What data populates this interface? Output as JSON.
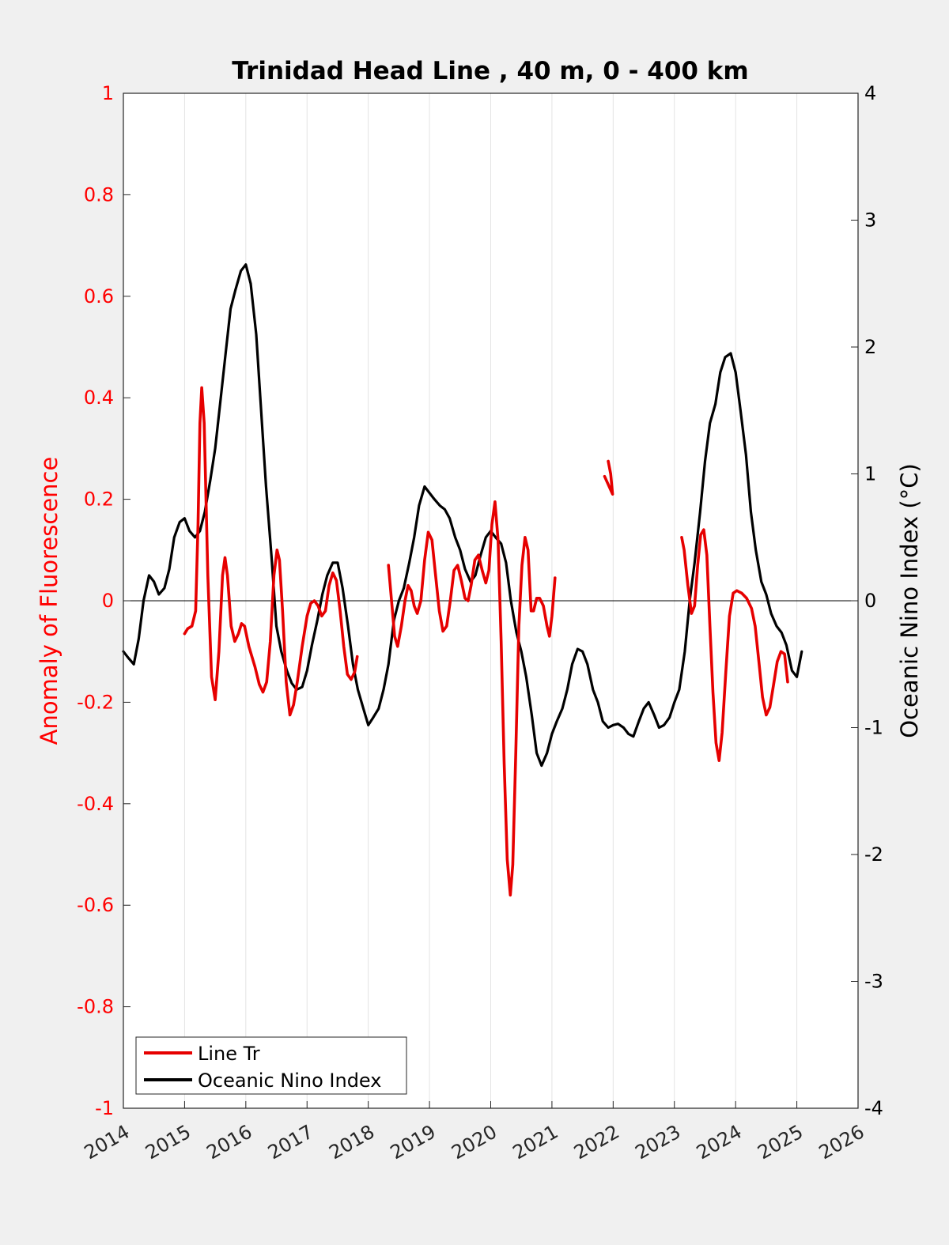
{
  "chart_data": {
    "type": "line",
    "title": "Trinidad Head Line , 40 m, 0 - 400 km",
    "xlabel": "",
    "ylabel_left": "Anomaly of Fluorescence",
    "ylabel_right": "Oceanic Nino Index (°C)",
    "xlim": [
      2014,
      2026
    ],
    "ylim_left": [
      -1,
      1
    ],
    "ylim_right": [
      -4,
      4
    ],
    "x_ticks": [
      "2014",
      "2015",
      "2016",
      "2017",
      "2018",
      "2019",
      "2020",
      "2021",
      "2022",
      "2023",
      "2024",
      "2025",
      "2026"
    ],
    "y_ticks_left": [
      "1",
      "0.8",
      "0.6",
      "0.4",
      "0.2",
      "0",
      "-0.2",
      "-0.4",
      "-0.6",
      "-0.8",
      "-1"
    ],
    "y_ticks_right": [
      "4",
      "3",
      "2",
      "1",
      "0",
      "-1",
      "-2",
      "-3",
      "-4"
    ],
    "grid": "vertical",
    "zero_line": true,
    "legend_position": "bottom-left",
    "colors": {
      "left_axis": "#ff0000",
      "line_tr": "#e60000",
      "oni": "#000000",
      "bg": "#f0f0f0"
    },
    "series": [
      {
        "name": "Line Tr",
        "axis": "left",
        "color": "#e60000",
        "segments": [
          [
            [
              2015.0,
              -0.065
            ],
            [
              2015.05,
              -0.055
            ],
            [
              2015.12,
              -0.05
            ],
            [
              2015.18,
              -0.02
            ],
            [
              2015.22,
              0.15
            ],
            [
              2015.25,
              0.35
            ],
            [
              2015.28,
              0.42
            ],
            [
              2015.32,
              0.35
            ],
            [
              2015.38,
              0.05
            ],
            [
              2015.44,
              -0.15
            ],
            [
              2015.5,
              -0.195
            ],
            [
              2015.56,
              -0.1
            ],
            [
              2015.62,
              0.05
            ],
            [
              2015.66,
              0.085
            ],
            [
              2015.7,
              0.05
            ],
            [
              2015.76,
              -0.05
            ],
            [
              2015.82,
              -0.08
            ],
            [
              2015.88,
              -0.065
            ],
            [
              2015.93,
              -0.045
            ],
            [
              2015.98,
              -0.05
            ],
            [
              2016.05,
              -0.09
            ],
            [
              2016.15,
              -0.13
            ],
            [
              2016.22,
              -0.165
            ],
            [
              2016.28,
              -0.18
            ],
            [
              2016.34,
              -0.16
            ],
            [
              2016.4,
              -0.08
            ],
            [
              2016.46,
              0.05
            ],
            [
              2016.51,
              0.1
            ],
            [
              2016.55,
              0.08
            ],
            [
              2016.6,
              -0.02
            ],
            [
              2016.66,
              -0.16
            ],
            [
              2016.72,
              -0.225
            ],
            [
              2016.78,
              -0.205
            ],
            [
              2016.84,
              -0.16
            ],
            [
              2016.92,
              -0.09
            ],
            [
              2017.0,
              -0.03
            ],
            [
              2017.06,
              -0.005
            ],
            [
              2017.12,
              0.0
            ],
            [
              2017.18,
              -0.01
            ],
            [
              2017.24,
              -0.03
            ],
            [
              2017.3,
              -0.02
            ],
            [
              2017.36,
              0.03
            ],
            [
              2017.42,
              0.055
            ],
            [
              2017.48,
              0.04
            ],
            [
              2017.54,
              -0.02
            ],
            [
              2017.6,
              -0.09
            ],
            [
              2017.66,
              -0.145
            ],
            [
              2017.72,
              -0.155
            ],
            [
              2017.78,
              -0.14
            ],
            [
              2017.82,
              -0.11
            ]
          ],
          [
            [
              2018.33,
              0.07
            ],
            [
              2018.38,
              0.0
            ],
            [
              2018.43,
              -0.07
            ],
            [
              2018.48,
              -0.09
            ],
            [
              2018.54,
              -0.05
            ],
            [
              2018.6,
              0.0
            ],
            [
              2018.65,
              0.03
            ],
            [
              2018.7,
              0.02
            ],
            [
              2018.75,
              -0.01
            ],
            [
              2018.8,
              -0.025
            ],
            [
              2018.86,
              0.0
            ],
            [
              2018.92,
              0.08
            ],
            [
              2018.98,
              0.135
            ],
            [
              2019.04,
              0.12
            ],
            [
              2019.1,
              0.05
            ],
            [
              2019.16,
              -0.02
            ],
            [
              2019.22,
              -0.06
            ],
            [
              2019.28,
              -0.05
            ],
            [
              2019.34,
              0.0
            ],
            [
              2019.4,
              0.06
            ],
            [
              2019.46,
              0.07
            ],
            [
              2019.52,
              0.04
            ],
            [
              2019.58,
              0.005
            ],
            [
              2019.63,
              0.0
            ],
            [
              2019.68,
              0.03
            ],
            [
              2019.74,
              0.08
            ],
            [
              2019.8,
              0.09
            ],
            [
              2019.86,
              0.06
            ],
            [
              2019.92,
              0.035
            ],
            [
              2019.97,
              0.06
            ],
            [
              2020.02,
              0.15
            ],
            [
              2020.07,
              0.195
            ],
            [
              2020.12,
              0.12
            ],
            [
              2020.17,
              -0.08
            ],
            [
              2020.22,
              -0.32
            ],
            [
              2020.27,
              -0.51
            ],
            [
              2020.32,
              -0.58
            ],
            [
              2020.36,
              -0.52
            ],
            [
              2020.41,
              -0.3
            ],
            [
              2020.46,
              -0.05
            ],
            [
              2020.51,
              0.07
            ],
            [
              2020.56,
              0.125
            ],
            [
              2020.61,
              0.1
            ],
            [
              2020.66,
              -0.02
            ],
            [
              2020.7,
              -0.02
            ],
            [
              2020.75,
              0.005
            ],
            [
              2020.8,
              0.005
            ],
            [
              2020.86,
              -0.01
            ],
            [
              2020.92,
              -0.05
            ],
            [
              2020.96,
              -0.07
            ],
            [
              2021.0,
              -0.03
            ],
            [
              2021.05,
              0.045
            ]
          ],
          [
            [
              2021.92,
              0.275
            ],
            [
              2021.96,
              0.25
            ],
            [
              2021.99,
              0.21
            ],
            [
              2021.86,
              0.245
            ]
          ],
          [
            [
              2023.12,
              0.125
            ],
            [
              2023.16,
              0.1
            ],
            [
              2023.22,
              0.03
            ],
            [
              2023.28,
              -0.025
            ],
            [
              2023.33,
              -0.01
            ],
            [
              2023.38,
              0.07
            ],
            [
              2023.43,
              0.13
            ],
            [
              2023.48,
              0.14
            ],
            [
              2023.53,
              0.09
            ],
            [
              2023.58,
              -0.05
            ],
            [
              2023.63,
              -0.18
            ],
            [
              2023.68,
              -0.28
            ],
            [
              2023.73,
              -0.315
            ],
            [
              2023.78,
              -0.26
            ],
            [
              2023.84,
              -0.14
            ],
            [
              2023.9,
              -0.03
            ],
            [
              2023.96,
              0.015
            ],
            [
              2024.02,
              0.02
            ],
            [
              2024.1,
              0.015
            ],
            [
              2024.18,
              0.005
            ],
            [
              2024.26,
              -0.015
            ],
            [
              2024.32,
              -0.05
            ],
            [
              2024.38,
              -0.12
            ],
            [
              2024.44,
              -0.19
            ],
            [
              2024.5,
              -0.225
            ],
            [
              2024.56,
              -0.21
            ],
            [
              2024.62,
              -0.165
            ],
            [
              2024.68,
              -0.12
            ],
            [
              2024.74,
              -0.1
            ],
            [
              2024.8,
              -0.105
            ],
            [
              2024.85,
              -0.16
            ]
          ]
        ]
      },
      {
        "name": "Oceanic Nino Index",
        "axis": "right",
        "color": "#000000",
        "points": [
          [
            2014.0,
            -0.4
          ],
          [
            2014.08,
            -0.45
          ],
          [
            2014.17,
            -0.5
          ],
          [
            2014.25,
            -0.3
          ],
          [
            2014.33,
            0.0
          ],
          [
            2014.42,
            0.2
          ],
          [
            2014.5,
            0.15
          ],
          [
            2014.58,
            0.05
          ],
          [
            2014.67,
            0.1
          ],
          [
            2014.75,
            0.25
          ],
          [
            2014.83,
            0.5
          ],
          [
            2014.92,
            0.62
          ],
          [
            2015.0,
            0.65
          ],
          [
            2015.08,
            0.55
          ],
          [
            2015.17,
            0.5
          ],
          [
            2015.25,
            0.55
          ],
          [
            2015.33,
            0.7
          ],
          [
            2015.42,
            0.95
          ],
          [
            2015.5,
            1.2
          ],
          [
            2015.58,
            1.55
          ],
          [
            2015.67,
            1.95
          ],
          [
            2015.75,
            2.3
          ],
          [
            2015.83,
            2.45
          ],
          [
            2015.92,
            2.6
          ],
          [
            2016.0,
            2.65
          ],
          [
            2016.08,
            2.5
          ],
          [
            2016.17,
            2.1
          ],
          [
            2016.25,
            1.5
          ],
          [
            2016.33,
            0.9
          ],
          [
            2016.42,
            0.35
          ],
          [
            2016.5,
            -0.2
          ],
          [
            2016.58,
            -0.4
          ],
          [
            2016.67,
            -0.55
          ],
          [
            2016.75,
            -0.65
          ],
          [
            2016.83,
            -0.7
          ],
          [
            2016.92,
            -0.68
          ],
          [
            2017.0,
            -0.55
          ],
          [
            2017.08,
            -0.35
          ],
          [
            2017.17,
            -0.15
          ],
          [
            2017.25,
            0.05
          ],
          [
            2017.33,
            0.2
          ],
          [
            2017.42,
            0.3
          ],
          [
            2017.5,
            0.3
          ],
          [
            2017.58,
            0.1
          ],
          [
            2017.67,
            -0.2
          ],
          [
            2017.75,
            -0.5
          ],
          [
            2017.83,
            -0.7
          ],
          [
            2017.92,
            -0.85
          ],
          [
            2018.0,
            -0.98
          ],
          [
            2018.08,
            -0.92
          ],
          [
            2018.17,
            -0.85
          ],
          [
            2018.25,
            -0.7
          ],
          [
            2018.33,
            -0.5
          ],
          [
            2018.42,
            -0.15
          ],
          [
            2018.5,
            0.0
          ],
          [
            2018.58,
            0.1
          ],
          [
            2018.67,
            0.3
          ],
          [
            2018.75,
            0.5
          ],
          [
            2018.83,
            0.75
          ],
          [
            2018.92,
            0.9
          ],
          [
            2019.0,
            0.85
          ],
          [
            2019.08,
            0.8
          ],
          [
            2019.17,
            0.75
          ],
          [
            2019.25,
            0.72
          ],
          [
            2019.33,
            0.65
          ],
          [
            2019.42,
            0.5
          ],
          [
            2019.5,
            0.4
          ],
          [
            2019.58,
            0.25
          ],
          [
            2019.67,
            0.15
          ],
          [
            2019.75,
            0.2
          ],
          [
            2019.83,
            0.35
          ],
          [
            2019.92,
            0.5
          ],
          [
            2020.0,
            0.55
          ],
          [
            2020.08,
            0.5
          ],
          [
            2020.17,
            0.45
          ],
          [
            2020.25,
            0.3
          ],
          [
            2020.33,
            0.0
          ],
          [
            2020.42,
            -0.25
          ],
          [
            2020.5,
            -0.4
          ],
          [
            2020.58,
            -0.6
          ],
          [
            2020.67,
            -0.9
          ],
          [
            2020.75,
            -1.2
          ],
          [
            2020.83,
            -1.3
          ],
          [
            2020.92,
            -1.2
          ],
          [
            2021.0,
            -1.05
          ],
          [
            2021.08,
            -0.95
          ],
          [
            2021.17,
            -0.85
          ],
          [
            2021.25,
            -0.7
          ],
          [
            2021.33,
            -0.5
          ],
          [
            2021.42,
            -0.38
          ],
          [
            2021.5,
            -0.4
          ],
          [
            2021.58,
            -0.5
          ],
          [
            2021.67,
            -0.7
          ],
          [
            2021.75,
            -0.8
          ],
          [
            2021.83,
            -0.95
          ],
          [
            2021.92,
            -1.0
          ],
          [
            2022.0,
            -0.98
          ],
          [
            2022.08,
            -0.97
          ],
          [
            2022.17,
            -1.0
          ],
          [
            2022.25,
            -1.05
          ],
          [
            2022.33,
            -1.07
          ],
          [
            2022.42,
            -0.95
          ],
          [
            2022.5,
            -0.85
          ],
          [
            2022.58,
            -0.8
          ],
          [
            2022.67,
            -0.9
          ],
          [
            2022.75,
            -1.0
          ],
          [
            2022.83,
            -0.98
          ],
          [
            2022.92,
            -0.92
          ],
          [
            2023.0,
            -0.8
          ],
          [
            2023.08,
            -0.7
          ],
          [
            2023.17,
            -0.4
          ],
          [
            2023.25,
            0.0
          ],
          [
            2023.33,
            0.3
          ],
          [
            2023.42,
            0.7
          ],
          [
            2023.5,
            1.1
          ],
          [
            2023.58,
            1.4
          ],
          [
            2023.67,
            1.55
          ],
          [
            2023.75,
            1.8
          ],
          [
            2023.83,
            1.92
          ],
          [
            2023.92,
            1.95
          ],
          [
            2024.0,
            1.8
          ],
          [
            2024.08,
            1.5
          ],
          [
            2024.17,
            1.15
          ],
          [
            2024.25,
            0.7
          ],
          [
            2024.33,
            0.4
          ],
          [
            2024.42,
            0.15
          ],
          [
            2024.5,
            0.05
          ],
          [
            2024.58,
            -0.1
          ],
          [
            2024.67,
            -0.2
          ],
          [
            2024.75,
            -0.25
          ],
          [
            2024.83,
            -0.35
          ],
          [
            2024.92,
            -0.55
          ],
          [
            2025.0,
            -0.6
          ],
          [
            2025.08,
            -0.4
          ]
        ]
      }
    ]
  }
}
